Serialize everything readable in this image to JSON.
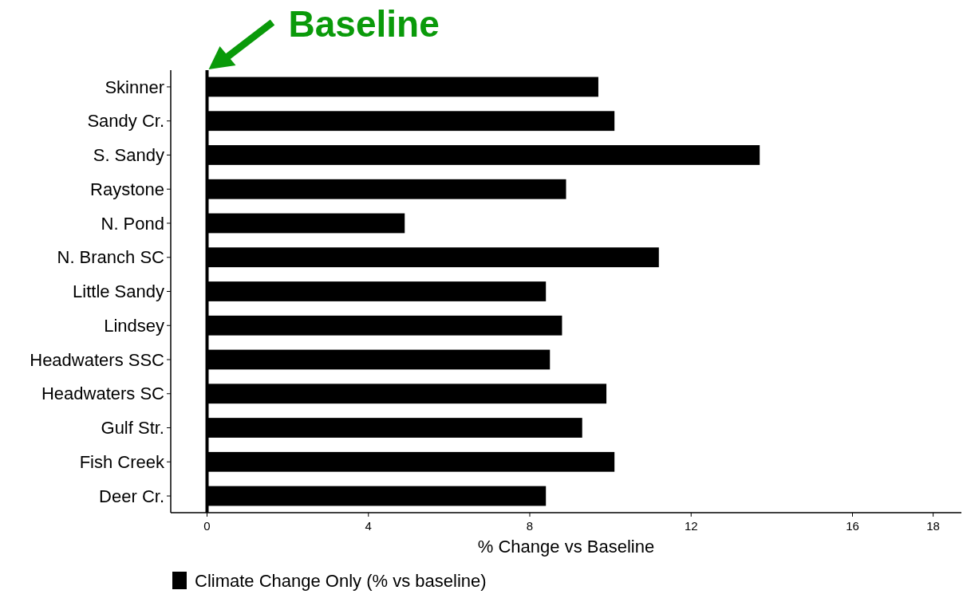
{
  "chart_data": {
    "type": "bar",
    "orientation": "horizontal",
    "xlabel": "% Change vs Baseline",
    "categories": [
      "Skinner",
      "Sandy Cr.",
      "S. Sandy",
      "Raystone",
      "N. Pond",
      "N. Branch SC",
      "Little Sandy",
      "Lindsey",
      "Headwaters SSC",
      "Headwaters SC",
      "Gulf Str.",
      "Fish Creek",
      "Deer Cr."
    ],
    "series": [
      {
        "name": "Climate Change Only (% vs baseline)",
        "color": "#000000",
        "values": [
          9.7,
          10.1,
          13.7,
          8.9,
          4.9,
          11.2,
          8.4,
          8.8,
          8.5,
          9.9,
          9.3,
          10.1,
          8.4
        ]
      }
    ],
    "xlim": [
      -0.9,
      18.7
    ],
    "xticks": [
      0,
      4,
      8,
      12,
      16,
      18
    ],
    "grid": false,
    "legend": "bottom",
    "ref_lines": [
      {
        "axis": "x",
        "value": 0,
        "label": "Baseline",
        "color": "#000000"
      }
    ]
  }
}
